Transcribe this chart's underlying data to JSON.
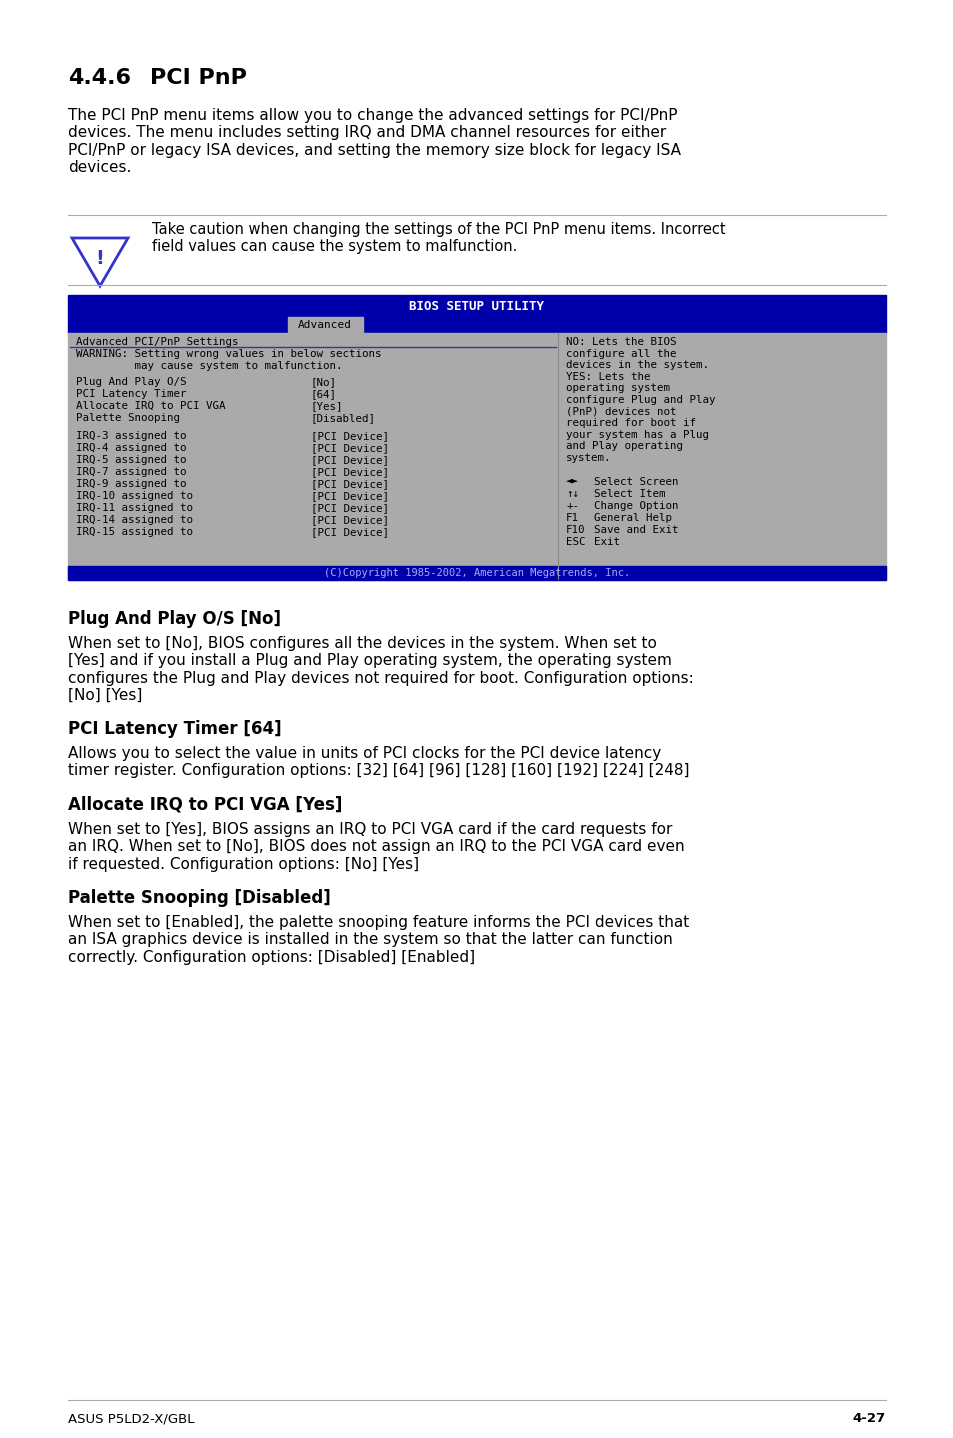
{
  "page_bg": "#ffffff",
  "section_number": "4.4.6",
  "section_title": "PCI PnP",
  "intro_text": "The PCI PnP menu items allow you to change the advanced settings for PCI/PnP\ndevices. The menu includes setting IRQ and DMA channel resources for either\nPCI/PnP or legacy ISA devices, and setting the memory size block for legacy ISA\ndevices.",
  "caution_text": "Take caution when changing the settings of the PCI PnP menu items. Incorrect\nfield values can cause the system to malfunction.",
  "bios_title": "BIOS SETUP UTILITY",
  "bios_tab": "Advanced",
  "bios_header": "Advanced PCI/PnP Settings",
  "bios_warning": "WARNING: Setting wrong values in below sections\n         may cause system to malfunction.",
  "bios_items": [
    [
      "Plug And Play O/S",
      "[No]"
    ],
    [
      "PCI Latency Timer",
      "[64]"
    ],
    [
      "Allocate IRQ to PCI VGA",
      "[Yes]"
    ],
    [
      "Palette Snooping",
      "[Disabled]"
    ]
  ],
  "bios_irqs": [
    [
      "IRQ-3 assigned to",
      "[PCI Device]"
    ],
    [
      "IRQ-4 assigned to",
      "[PCI Device]"
    ],
    [
      "IRQ-5 assigned to",
      "[PCI Device]"
    ],
    [
      "IRQ-7 assigned to",
      "[PCI Device]"
    ],
    [
      "IRQ-9 assigned to",
      "[PCI Device]"
    ],
    [
      "IRQ-10 assigned to",
      "[PCI Device]"
    ],
    [
      "IRQ-11 assigned to",
      "[PCI Device]"
    ],
    [
      "IRQ-14 assigned to",
      "[PCI Device]"
    ],
    [
      "IRQ-15 assigned to",
      "[PCI Device]"
    ]
  ],
  "bios_right_text": "NO: Lets the BIOS\nconfigure all the\ndevices in the system.\nYES: Lets the\noperating system\nconfigure Plug and Play\n(PnP) devices not\nrequired for boot if\nyour system has a Plug\nand Play operating\nsystem.",
  "bios_controls": [
    [
      "◄►",
      "Select Screen"
    ],
    [
      "↑↓",
      "Select Item"
    ],
    [
      "+-",
      "Change Option"
    ],
    [
      "F1",
      "General Help"
    ],
    [
      "F10",
      "Save and Exit"
    ],
    [
      "ESC",
      "Exit"
    ]
  ],
  "bios_copyright": "(C)Copyright 1985-2002, American Megatrends, Inc.",
  "sections": [
    {
      "heading": "Plug And Play O/S [No]",
      "body": "When set to [No], BIOS configures all the devices in the system. When set to\n[Yes] and if you install a Plug and Play operating system, the operating system\nconfigures the Plug and Play devices not required for boot. Configuration options:\n[No] [Yes]"
    },
    {
      "heading": "PCI Latency Timer [64]",
      "body": "Allows you to select the value in units of PCI clocks for the PCI device latency\ntimer register. Configuration options: [32] [64] [96] [128] [160] [192] [224] [248]"
    },
    {
      "heading": "Allocate IRQ to PCI VGA [Yes]",
      "body": "When set to [Yes], BIOS assigns an IRQ to PCI VGA card if the card requests for\nan IRQ. When set to [No], BIOS does not assign an IRQ to the PCI VGA card even\nif requested. Configuration options: [No] [Yes]"
    },
    {
      "heading": "Palette Snooping [Disabled]",
      "body": "When set to [Enabled], the palette snooping feature informs the PCI devices that\nan ISA graphics device is installed in the system so that the latter can function\ncorrectly. Configuration options: [Disabled] [Enabled]"
    }
  ],
  "footer_left": "ASUS P5LD2-X/GBL",
  "footer_right": "4-27",
  "bios_bg": "#0000aa",
  "bios_panel_bg": "#aaaaaa",
  "bios_text_color": "#000000",
  "bios_title_color": "#ffffff",
  "bios_highlight_color": "#ffffff"
}
